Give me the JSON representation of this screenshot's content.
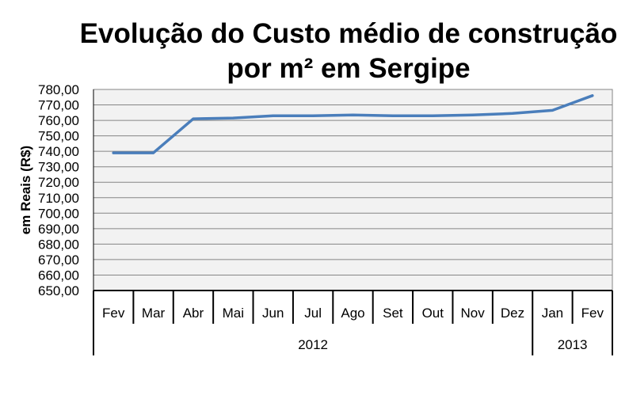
{
  "chart_data": {
    "type": "line",
    "title_lines": [
      "Evolução do Custo médio de construção",
      "por m² em Sergipe"
    ],
    "ylabel": "em Reais (R$)",
    "xlabel": "",
    "categories": [
      "Fev",
      "Mar",
      "Abr",
      "Mai",
      "Jun",
      "Jul",
      "Ago",
      "Set",
      "Out",
      "Nov",
      "Dez",
      "Jan",
      "Fev"
    ],
    "year_groups": [
      {
        "label": "2012",
        "count": 11
      },
      {
        "label": "2013",
        "count": 2
      }
    ],
    "series": [
      {
        "values": [
          739.0,
          739.0,
          761.0,
          761.5,
          763.0,
          763.0,
          763.5,
          763.0,
          763.0,
          763.5,
          764.5,
          766.5,
          776.0
        ]
      }
    ],
    "ylim": [
      650,
      780
    ],
    "ytick_step": 10,
    "ytick_labels": [
      "650,00",
      "660,00",
      "670,00",
      "680,00",
      "690,00",
      "700,00",
      "710,00",
      "720,00",
      "730,00",
      "740,00",
      "750,00",
      "760,00",
      "770,00",
      "780,00"
    ],
    "grid": true,
    "legend": "none",
    "colors": {
      "line": "#4a7ebb",
      "plot_bg": "#f2f2f2",
      "grid": "#858585",
      "axis": "#000000"
    }
  }
}
